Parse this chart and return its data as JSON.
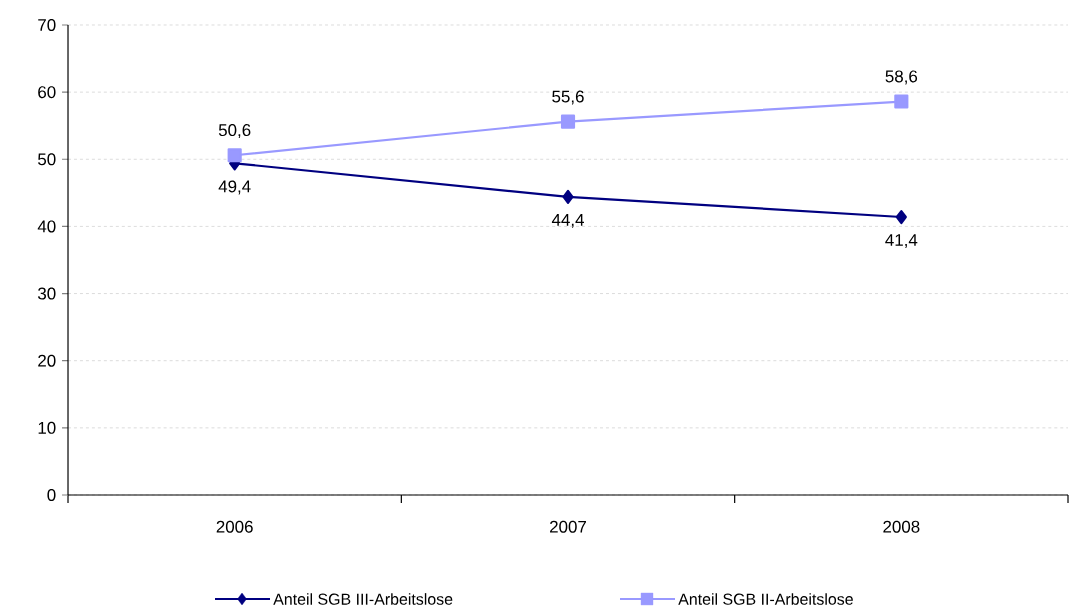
{
  "chart_data": {
    "type": "line",
    "categories": [
      "2006",
      "2007",
      "2008"
    ],
    "series": [
      {
        "name": "Anteil SGB III-Arbeitslose",
        "color": "#000080",
        "marker": "diamond",
        "values": [
          49.4,
          44.4,
          41.4
        ],
        "value_labels": [
          "49,4",
          "44,4",
          "41,4"
        ]
      },
      {
        "name": "Anteil SGB II-Arbeitslose",
        "color": "#9999ff",
        "marker": "square",
        "values": [
          50.6,
          55.6,
          58.6
        ],
        "value_labels": [
          "50,6",
          "55,6",
          "58,6"
        ]
      }
    ],
    "ylim": [
      0,
      70
    ],
    "yticks": [
      0,
      10,
      20,
      30,
      40,
      50,
      60,
      70
    ],
    "grid": "y",
    "legend": "bottom",
    "line_style": "solid"
  }
}
